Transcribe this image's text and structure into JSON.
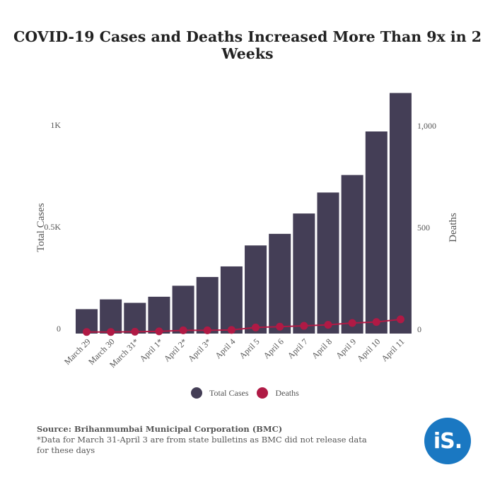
{
  "title": "COVID-19 Cases and Deaths Increased More Than 9x in 2 Weeks",
  "legend": {
    "cases": "Total Cases",
    "deaths": "Deaths"
  },
  "source": {
    "line1": "Source: Brihanmumbai Municipal Corporation (BMC)",
    "line2": "*Data for March 31-April 3 are from state bulletins as BMC did not release data for these days"
  },
  "logo_text": "iS.",
  "colors": {
    "bars": "#443e56",
    "deaths": "#b01a45",
    "logo": "#1a78c2"
  },
  "chart_data": {
    "type": "bar",
    "title": "COVID-19 Cases and Deaths Increased More Than 9x in 2 Weeks",
    "categories": [
      "March 29",
      "March 30",
      "March 31*",
      "April 1*",
      "April 2*",
      "April 3*",
      "April 4",
      "April 5",
      "April 6",
      "April 7",
      "April 8",
      "April 9",
      "April 10",
      "April 11"
    ],
    "series": [
      {
        "name": "Total Cases",
        "type": "bar",
        "axis": "left",
        "values": [
          120,
          168,
          151,
          181,
          235,
          278,
          330,
          433,
          490,
          590,
          693,
          779,
          993,
          1182
        ]
      },
      {
        "name": "Deaths",
        "type": "line",
        "axis": "right",
        "values": [
          8,
          8,
          9,
          11,
          16,
          16,
          18,
          30,
          34,
          38,
          43,
          52,
          57,
          70
        ]
      }
    ],
    "y_left": {
      "label": "Total Cases",
      "ticks": [
        "0",
        "0.5K",
        "1K"
      ],
      "tick_values": [
        0,
        500,
        1000
      ],
      "range": [
        0,
        1200
      ]
    },
    "y_right": {
      "label": "Deaths",
      "ticks": [
        "0",
        "500",
        "1,000"
      ],
      "tick_values": [
        0,
        500,
        1000
      ],
      "range": [
        0,
        1200
      ]
    },
    "grid": false,
    "legend_position": "bottom"
  }
}
